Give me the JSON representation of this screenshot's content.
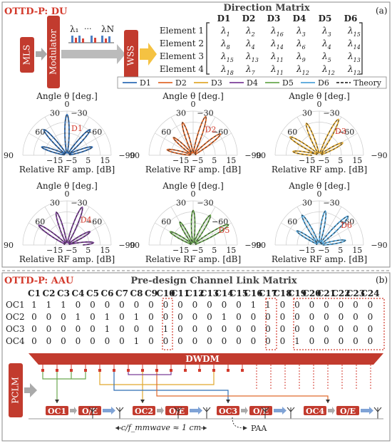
{
  "panel_a": {
    "title": "OTTD-P: DU",
    "tag": "(a)",
    "blocks": {
      "mls": "MLS",
      "modulator": "Modulator",
      "wss": "WSS"
    },
    "spectrum": {
      "lambda_1": "λ₁",
      "dots": "···",
      "lambda_n": "λN"
    },
    "matrix": {
      "title": "Direction Matrix",
      "columns": [
        "D1",
        "D2",
        "D3",
        "D4",
        "D5",
        "D6"
      ],
      "rows": [
        {
          "label": "Element 1",
          "subs": [
            "1",
            "2",
            "16",
            "3",
            "3",
            "15"
          ]
        },
        {
          "label": "Element 2",
          "subs": [
            "8",
            "4",
            "14",
            "6",
            "4",
            "14"
          ]
        },
        {
          "label": "Element 3",
          "subs": [
            "15",
            "13",
            "11",
            "9",
            "5",
            "13"
          ]
        },
        {
          "label": "Element 4",
          "subs": [
            "18",
            "7",
            "11",
            "12",
            "12",
            "12"
          ]
        }
      ]
    },
    "legend": [
      {
        "name": "D1",
        "color": "#2f6db5"
      },
      {
        "name": "D2",
        "color": "#e06a2c"
      },
      {
        "name": "D3",
        "color": "#e0a82e"
      },
      {
        "name": "D4",
        "color": "#7b3f98"
      },
      {
        "name": "D5",
        "color": "#6aa84f"
      },
      {
        "name": "D6",
        "color": "#4fa3d9"
      },
      {
        "name": "Theory",
        "color": "#333333"
      }
    ],
    "polar_axis": {
      "top_label": "Angle θ [deg.]",
      "bottom_label": "Relative RF amp. [dB]",
      "angle_ticks": [
        "0",
        "30",
        "−30",
        "60",
        "−60",
        "90",
        "−90"
      ],
      "radial_ticks": [
        "−15",
        "−5",
        "5",
        "15"
      ]
    },
    "polar_plots": [
      {
        "label": "D1",
        "color": "#2f6db5",
        "lobes": [
          0,
          -42,
          42,
          -72,
          72
        ]
      },
      {
        "label": "D2",
        "color": "#e06a2c",
        "lobes": [
          -18,
          -52,
          18,
          48,
          78
        ]
      },
      {
        "label": "D3",
        "color": "#e0a82e",
        "lobes": [
          -28,
          22,
          58,
          -62,
          82
        ]
      },
      {
        "label": "D4",
        "color": "#7b3f98",
        "lobes": [
          -22,
          18,
          55,
          -60,
          -85
        ]
      },
      {
        "label": "D5",
        "color": "#6aa84f",
        "lobes": [
          -60,
          -30,
          0,
          30,
          60
        ]
      },
      {
        "label": "D6",
        "color": "#4fa3d9",
        "lobes": [
          -45,
          -10,
          30,
          58,
          -80
        ]
      }
    ]
  },
  "panel_b": {
    "title": "OTTD-P: AAU",
    "tag": "(b)",
    "matrix": {
      "title": "Pre-design Channel Link Matrix",
      "columns": [
        "C1",
        "C2",
        "C3",
        "C4",
        "C5",
        "C6",
        "C7",
        "C8",
        "C9",
        "C10",
        "C11",
        "C12",
        "C13",
        "C14",
        "C15",
        "C16",
        "C17",
        "C18",
        "C19",
        "C20",
        "C21",
        "C22",
        "C23",
        "C24"
      ],
      "rows": [
        {
          "label": "OC1",
          "values": [
            1,
            1,
            1,
            0,
            0,
            0,
            0,
            0,
            0,
            0,
            0,
            0,
            0,
            0,
            0,
            1,
            1,
            0,
            0,
            0,
            0,
            0,
            0,
            0
          ]
        },
        {
          "label": "OC2",
          "values": [
            0,
            0,
            0,
            1,
            0,
            1,
            0,
            1,
            0,
            0,
            0,
            0,
            0,
            1,
            0,
            0,
            0,
            0,
            0,
            0,
            0,
            0,
            0,
            0
          ]
        },
        {
          "label": "OC3",
          "values": [
            0,
            0,
            0,
            0,
            0,
            1,
            0,
            0,
            0,
            1,
            0,
            0,
            0,
            0,
            0,
            0,
            0,
            0,
            0,
            0,
            0,
            0,
            0,
            0
          ]
        },
        {
          "label": "OC4",
          "values": [
            0,
            0,
            0,
            0,
            0,
            0,
            0,
            1,
            0,
            0,
            0,
            0,
            0,
            0,
            0,
            0,
            0,
            0,
            1,
            0,
            0,
            0,
            0,
            0
          ]
        }
      ]
    },
    "dwdm": "DWDM",
    "pclm": "PCLM",
    "oc": [
      "OC1",
      "OC2",
      "OC3",
      "OC4"
    ],
    "oe": "O/E",
    "spacing_label": "c/f_mmwave ≈ 1 cm",
    "paa_label": "PAA"
  }
}
